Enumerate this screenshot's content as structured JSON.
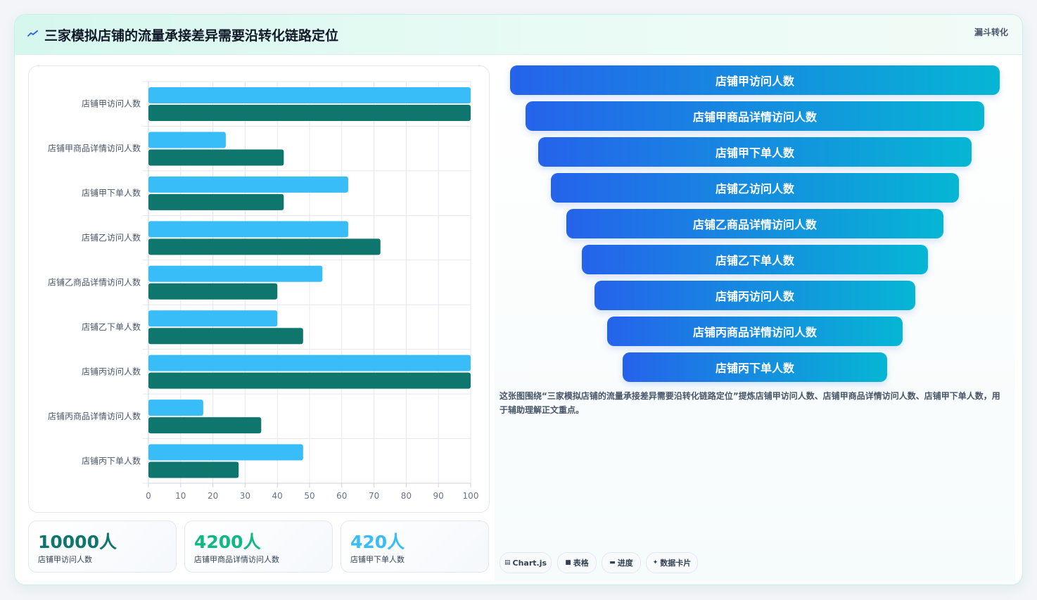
{
  "header": {
    "title": "三家模拟店铺的流量承接差异需要沿转化链路定位",
    "tag": "漏斗转化"
  },
  "colors": {
    "series1": "#38bdf8",
    "series2": "#0f766e",
    "funnel_start": "#2563eb",
    "funnel_end": "#06b6d4"
  },
  "chart_data": {
    "type": "bar",
    "orientation": "horizontal",
    "categories": [
      "店铺甲访问人数",
      "店铺甲商品详情访问人数",
      "店铺甲下单人数",
      "店铺乙访问人数",
      "店铺乙商品详情访问人数",
      "店铺乙下单人数",
      "店铺丙访问人数",
      "店铺丙商品详情访问人数",
      "店铺丙下单人数"
    ],
    "series": [
      {
        "values": [
          100,
          24,
          62,
          62,
          54,
          40,
          100,
          17,
          48
        ]
      },
      {
        "values": [
          100,
          42,
          42,
          72,
          40,
          48,
          100,
          35,
          28
        ]
      }
    ],
    "xlim": [
      0,
      100
    ],
    "xticks": [
      "0",
      "10",
      "20",
      "30",
      "40",
      "50",
      "60",
      "70",
      "80",
      "90",
      "100"
    ],
    "grid": true
  },
  "kpis": [
    {
      "value": "10000人",
      "label": "店铺甲访问人数",
      "color": "#0f766e"
    },
    {
      "value": "4200人",
      "label": "店铺甲商品详情访问人数",
      "color": "#10b981"
    },
    {
      "value": "420人",
      "label": "店铺甲下单人数",
      "color": "#38bdf8"
    }
  ],
  "funnel": {
    "steps": [
      "店铺甲访问人数",
      "店铺甲商品详情访问人数",
      "店铺甲下单人数",
      "店铺乙访问人数",
      "店铺乙商品详情访问人数",
      "店铺乙下单人数",
      "店铺丙访问人数",
      "店铺丙商品详情访问人数",
      "店铺丙下单人数"
    ]
  },
  "description": "这张图围绕“三家模拟店铺的流量承接差异需要沿转化链路定位”提炼店铺甲访问人数、店铺甲商品详情访问人数、店铺甲下单人数，用于辅助理解正文重点。",
  "chips": [
    {
      "icon": "▤",
      "label": "Chart.js",
      "icon_name": "chart-icon"
    },
    {
      "icon": "■",
      "label": "表格",
      "icon_name": "table-icon"
    },
    {
      "icon": "▬",
      "label": "进度",
      "icon_name": "progress-icon"
    },
    {
      "icon": "✦",
      "label": "数据卡片",
      "icon_name": "sparkle-icon"
    }
  ]
}
